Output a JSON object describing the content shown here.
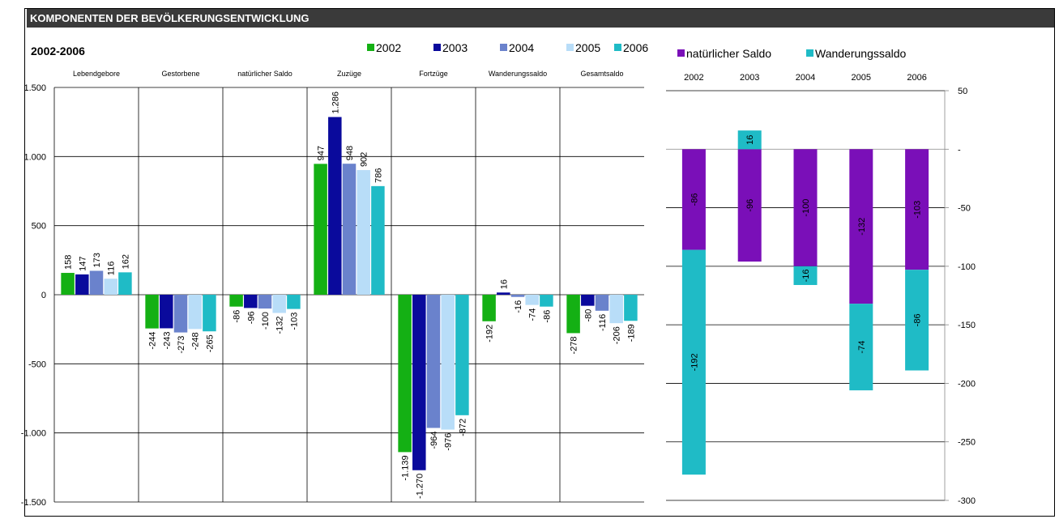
{
  "header": {
    "title": "KOMPONENTEN DER BEVÖLKERUNGSENTWICKLUNG",
    "period": "2002-2006"
  },
  "colors": {
    "2002": "#14b014",
    "2003": "#0a0a9c",
    "2004": "#6a82cc",
    "2005": "#b8ddf8",
    "2006": "#1fbbc6",
    "natuerlich": "#7a0fb8",
    "wanderung": "#1fbbc6"
  },
  "chart_data": [
    {
      "type": "bar",
      "categories": [
        "Lebendgebore",
        "Gestorbene",
        "natürlicher Saldo",
        "Zuzüge",
        "Fortzüge",
        "Wanderungssaldo",
        "Gesamtsaldo"
      ],
      "series": [
        {
          "name": "2002",
          "values": [
            158,
            -244,
            -86,
            947,
            -1139,
            -192,
            -278
          ],
          "labels": [
            "158",
            "-244",
            "-86",
            "947",
            "-1.139",
            "-192",
            "-278"
          ]
        },
        {
          "name": "2003",
          "values": [
            147,
            -243,
            -96,
            1286,
            -1270,
            16,
            -80
          ],
          "labels": [
            "147",
            "-243",
            "-96",
            "1.286",
            "-1.270",
            "16",
            "-80"
          ]
        },
        {
          "name": "2004",
          "values": [
            173,
            -273,
            -100,
            948,
            -964,
            -16,
            -116
          ],
          "labels": [
            "173",
            "-273",
            "-100",
            "948",
            "-964",
            "-16",
            "-116"
          ]
        },
        {
          "name": "2005",
          "values": [
            116,
            -248,
            -132,
            902,
            -976,
            -74,
            -206
          ],
          "labels": [
            "116",
            "-248",
            "-132",
            "902",
            "-976",
            "-74",
            "-206"
          ]
        },
        {
          "name": "2006",
          "values": [
            162,
            -265,
            -103,
            786,
            -872,
            -86,
            -189
          ],
          "labels": [
            "162",
            "-265",
            "-103",
            "786",
            "-872",
            "-86",
            "-189"
          ]
        }
      ],
      "ylim": [
        -1500,
        1500
      ],
      "yticks": [
        1500,
        1000,
        500,
        0,
        -500,
        -1000,
        -1500
      ],
      "ytick_labels": [
        "1.500",
        "1.000",
        "500",
        "0",
        "-500",
        "-1.000",
        "-1.500"
      ],
      "legend": "top-right",
      "grid": true
    },
    {
      "type": "bar",
      "stacked": true,
      "categories": [
        "2002",
        "2003",
        "2004",
        "2005",
        "2006"
      ],
      "series": [
        {
          "name": "natürlicher Saldo",
          "values": [
            -86,
            -96,
            -100,
            -132,
            -103
          ],
          "labels": [
            "-86",
            "-96",
            "-100",
            "-132",
            "-103"
          ]
        },
        {
          "name": "Wanderungssaldo",
          "values": [
            -192,
            16,
            -16,
            -74,
            -86
          ],
          "labels": [
            "-192",
            "16",
            "-16",
            "-74",
            "-86"
          ]
        }
      ],
      "ylim": [
        -300,
        50
      ],
      "yticks": [
        50,
        0,
        -50,
        -100,
        -150,
        -200,
        -250,
        -300
      ],
      "ytick_labels": [
        "50",
        "-",
        "-50",
        "-100",
        "-150",
        "-200",
        "-250",
        "-300"
      ],
      "legend": "top-left",
      "grid": true
    }
  ]
}
